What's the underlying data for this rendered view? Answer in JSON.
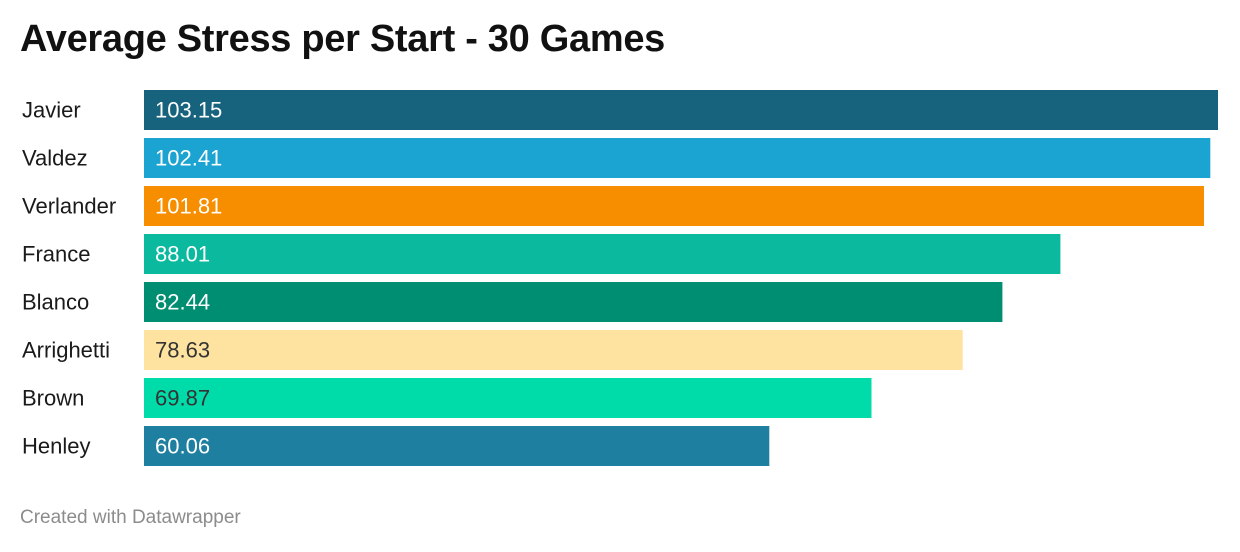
{
  "title": "Average Stress per Start - 30 Games",
  "footer": "Created with Datawrapper",
  "chart_data": {
    "type": "bar",
    "orientation": "horizontal",
    "title": "Average Stress per Start - 30 Games",
    "categories": [
      "Javier",
      "Valdez",
      "Verlander",
      "France",
      "Blanco",
      "Arrighetti",
      "Brown",
      "Henley"
    ],
    "values": [
      103.15,
      102.41,
      101.81,
      88.01,
      82.44,
      78.63,
      69.87,
      60.06
    ],
    "labels": [
      "103.15",
      "102.41",
      "101.81",
      "88.01",
      "82.44",
      "78.63",
      "69.87",
      "60.06"
    ],
    "colors": [
      "#17627d",
      "#1ba3d1",
      "#f78e00",
      "#0ab99e",
      "#008e73",
      "#fee29f",
      "#00dca9",
      "#1f7fa1"
    ],
    "label_colors": [
      "#ffffff",
      "#ffffff",
      "#ffffff",
      "#ffffff",
      "#ffffff",
      "#333333",
      "#333333",
      "#ffffff"
    ],
    "xlabel": "",
    "ylabel": "",
    "xlim": [
      0,
      103.15
    ],
    "grid": false,
    "legend": "none"
  }
}
